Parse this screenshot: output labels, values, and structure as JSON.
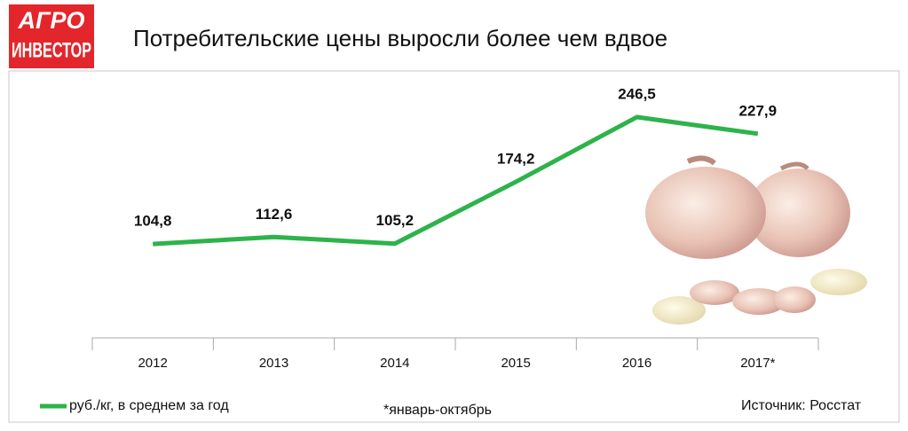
{
  "logo": {
    "line1": "АГРО",
    "line2": "ИНВЕСТОР"
  },
  "chart_data": {
    "type": "line",
    "title": "Потребительские цены выросли более чем вдвое",
    "categories": [
      "2012",
      "2013",
      "2014",
      "2015",
      "2016",
      "2017*"
    ],
    "series": [
      {
        "name": "руб./кг, в среднем за год",
        "color": "#2db34a",
        "values": [
          104.8,
          112.6,
          105.2,
          174.2,
          246.5,
          227.9
        ],
        "value_labels": [
          "104,8",
          "112,6",
          "105,2",
          "174,2",
          "246,5",
          "227,9"
        ]
      }
    ],
    "footnote": "*январь-октябрь",
    "source": "Источник: Росстат"
  }
}
